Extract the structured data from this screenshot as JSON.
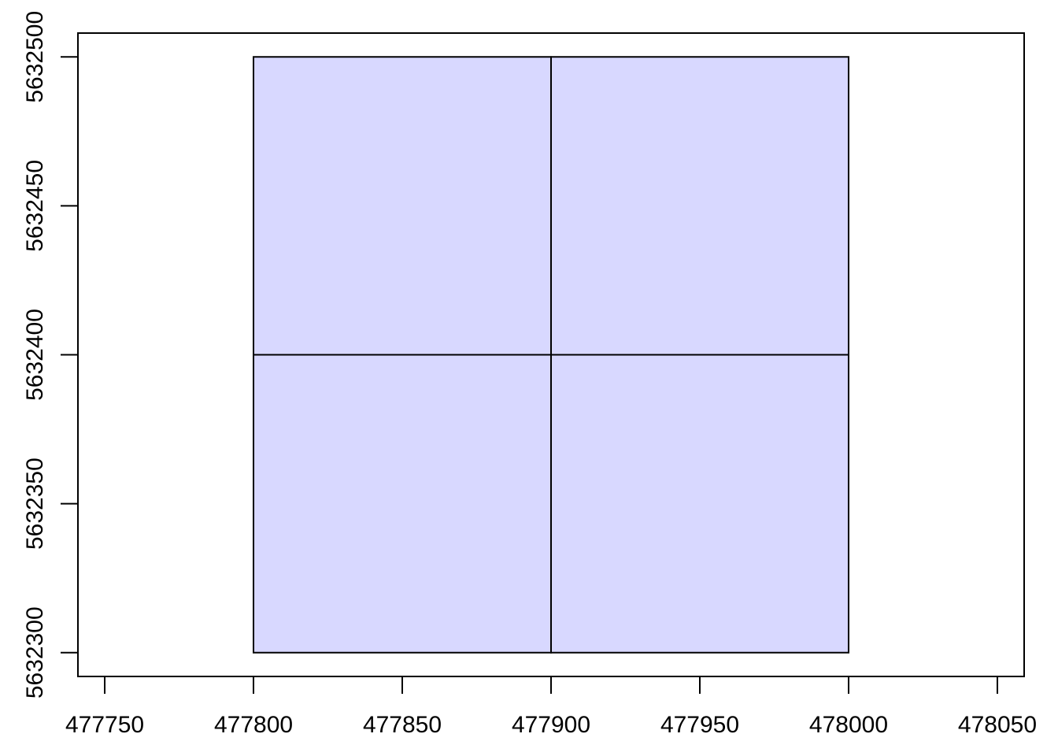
{
  "chart_data": {
    "type": "grid-cells",
    "title": "",
    "xlabel": "",
    "ylabel": "",
    "xlim": [
      477741.0,
      478059.0
    ],
    "ylim": [
      5632292.0,
      5632508.0
    ],
    "x_ticks": [
      477750,
      477800,
      477850,
      477900,
      477950,
      478000,
      478050
    ],
    "y_ticks": [
      5632300,
      5632350,
      5632400,
      5632450,
      5632500
    ],
    "x_tick_labels": [
      "477750",
      "477800",
      "477850",
      "477900",
      "477950",
      "478000",
      "478050"
    ],
    "y_tick_labels": [
      "5632300",
      "5632350",
      "5632400",
      "5632450",
      "5632500"
    ],
    "cells": [
      {
        "xmin": 477800,
        "xmax": 477900,
        "ymin": 5632400,
        "ymax": 5632500
      },
      {
        "xmin": 477900,
        "xmax": 478000,
        "ymin": 5632400,
        "ymax": 5632500
      },
      {
        "xmin": 477800,
        "xmax": 477900,
        "ymin": 5632300,
        "ymax": 5632400
      },
      {
        "xmin": 477900,
        "xmax": 478000,
        "ymin": 5632300,
        "ymax": 5632400
      }
    ],
    "fill_color": "#d8d8ff",
    "border_color": "#000000",
    "grid": false,
    "legend": "none"
  }
}
